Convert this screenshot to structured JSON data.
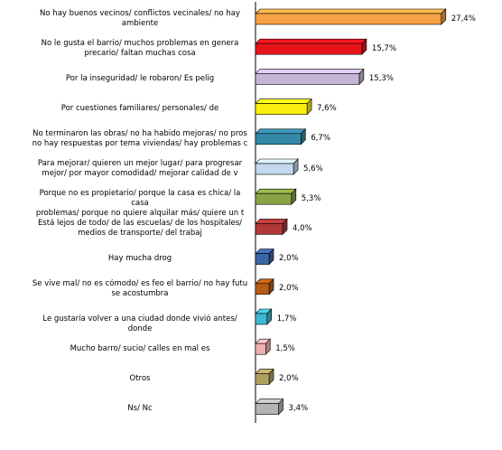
{
  "chart_data": {
    "type": "bar",
    "orientation": "horizontal",
    "title": "",
    "xlabel": "",
    "ylabel": "",
    "xlim": [
      0,
      30
    ],
    "grid": false,
    "legend": "none",
    "categories": [
      "No hay buenos vecinos/ conflictos vecinales/ no hay\nambiente",
      "No le gusta el barrio/ muchos problemas en genera\nprecario/ faltan muchas cosa",
      "Por la inseguridad/ le robaron/ Es pelig",
      "Por cuestiones familiares/ personales/ de",
      "No terminaron las obras/ no ha habido mejoras/ no pros\nno hay respuestas por tema viviendas/ hay problemas c",
      "Para mejorar/ quieren un mejor lugar/ para progresar\nmejor/ por mayor comodidad/ mejorar calidad de v",
      "Porque no es propietario/ porque la casa es chica/ la casa\nproblemas/ porque no quiere alquilar más/ quiere un t",
      "Está lejos de todo/ de las escuelas/ de los hospitales/\nmedios de transporte/ del trabaj",
      "Hay mucha drog",
      "Se vive mal/ no es cómodo/ es feo el barrio/ no hay futu\nse acostumbra",
      "Le gustaría volver a una ciudad donde vivió antes/ donde",
      "Mucho barro/ sucio/ calles en mal es",
      "Otros",
      "Ns/ Nc"
    ],
    "values": [
      27.4,
      15.7,
      15.3,
      7.6,
      6.7,
      5.6,
      5.3,
      4.0,
      2.0,
      2.0,
      1.7,
      1.5,
      2.0,
      3.4
    ],
    "value_labels": [
      "27,4%",
      "15,7%",
      "15,3%",
      "7,6%",
      "6,7%",
      "5,6%",
      "5,3%",
      "4,0%",
      "2,0%",
      "2,0%",
      "1,7%",
      "1,5%",
      "2,0%",
      "3,4%"
    ],
    "colors": [
      "#f7a244",
      "#e8141c",
      "#c4b4d8",
      "#f8ee12",
      "#3488a6",
      "#c4d8ee",
      "#88a444",
      "#b03838",
      "#3a66a8",
      "#b85c14",
      "#3eb8d0",
      "#f0b0b0",
      "#b0a060",
      "#b4b4b4"
    ]
  }
}
